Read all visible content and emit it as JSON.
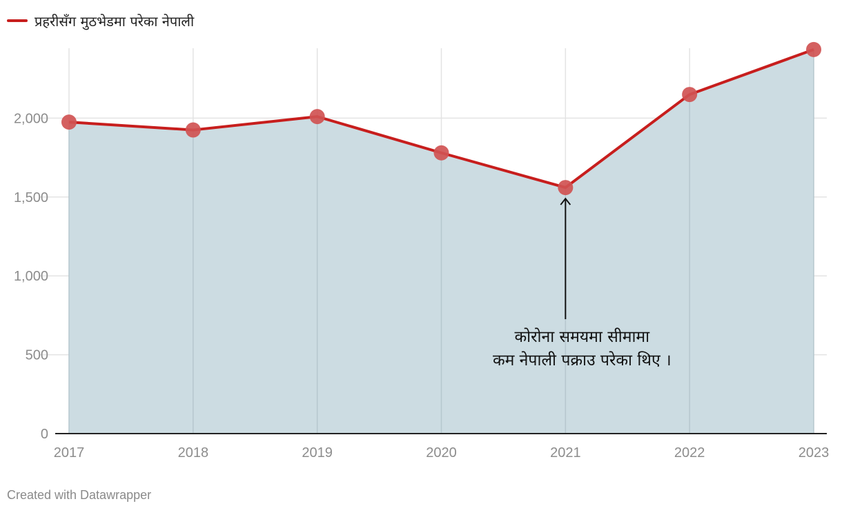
{
  "legend": {
    "label": "प्रहरीसँग मुठभेडमा परेका नेपाली"
  },
  "credit": "Created with Datawrapper",
  "colors": {
    "line": "#c71e1d",
    "marker": "#d05252",
    "area": "#ccdce2",
    "grid": "#e3e3e3",
    "axis": "#222222",
    "tick_text": "#8c8c8c"
  },
  "chart_data": {
    "type": "line",
    "categories": [
      "2017",
      "2018",
      "2019",
      "2020",
      "2021",
      "2022",
      "2023"
    ],
    "series": [
      {
        "name": "प्रहरीसँग मुठभेडमा परेका नेपाली",
        "values": [
          1975,
          1925,
          2010,
          1780,
          1560,
          2150,
          2435
        ]
      }
    ],
    "ylim": [
      0,
      2500
    ],
    "y_ticks": [
      0,
      500,
      1000,
      1500,
      2000
    ],
    "y_tick_labels": [
      "0",
      "500",
      "1,000",
      "1,500",
      "2,000"
    ],
    "area_fill": true,
    "grid": true,
    "legend_position": "top-left",
    "annotation": {
      "category": "2021",
      "lines": [
        "कोरोना समयमा सीमामा",
        "कम नेपाली पक्राउ परेका थिए ।"
      ]
    }
  }
}
